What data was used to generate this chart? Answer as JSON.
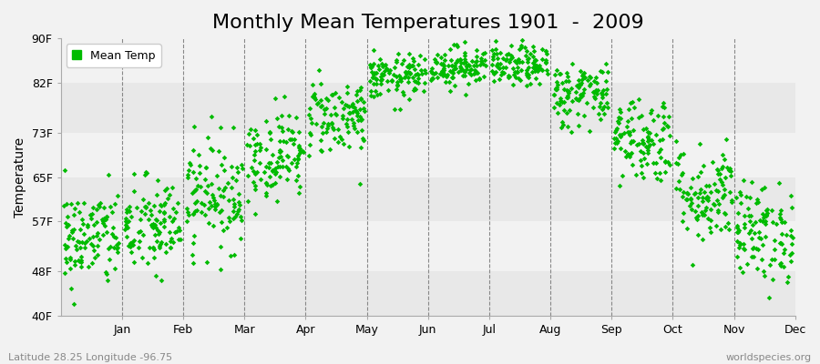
{
  "title": "Monthly Mean Temperatures 1901  -  2009",
  "ylabel": "Temperature",
  "latitude_label": "Latitude 28.25 Longitude -96.75",
  "watermark": "worldspecies.org",
  "legend_label": "Mean Temp",
  "dot_color": "#00bb00",
  "background_color": "#f2f2f2",
  "band_colors_h": [
    "#e8e8e8",
    "#f2f2f2"
  ],
  "ytick_labels": [
    "40F",
    "48F",
    "57F",
    "65F",
    "73F",
    "82F",
    "90F"
  ],
  "ytick_values": [
    40,
    48,
    57,
    65,
    73,
    82,
    90
  ],
  "ylim": [
    40,
    90
  ],
  "months": [
    "Jan",
    "Feb",
    "Mar",
    "Apr",
    "May",
    "Jun",
    "Jul",
    "Aug",
    "Sep",
    "Oct",
    "Nov",
    "Dec"
  ],
  "mean_temps": [
    54,
    56,
    62,
    69,
    76,
    83,
    85,
    85,
    80,
    72,
    62,
    55
  ],
  "std_temps": [
    4.5,
    4.5,
    5.0,
    4.0,
    3.5,
    2.0,
    1.8,
    1.8,
    3.0,
    4.0,
    4.5,
    4.5
  ],
  "n_years": 109,
  "seed": 42,
  "title_fontsize": 16,
  "axis_label_fontsize": 10,
  "tick_fontsize": 9,
  "legend_fontsize": 9,
  "dot_size": 8,
  "dot_marker": "D"
}
